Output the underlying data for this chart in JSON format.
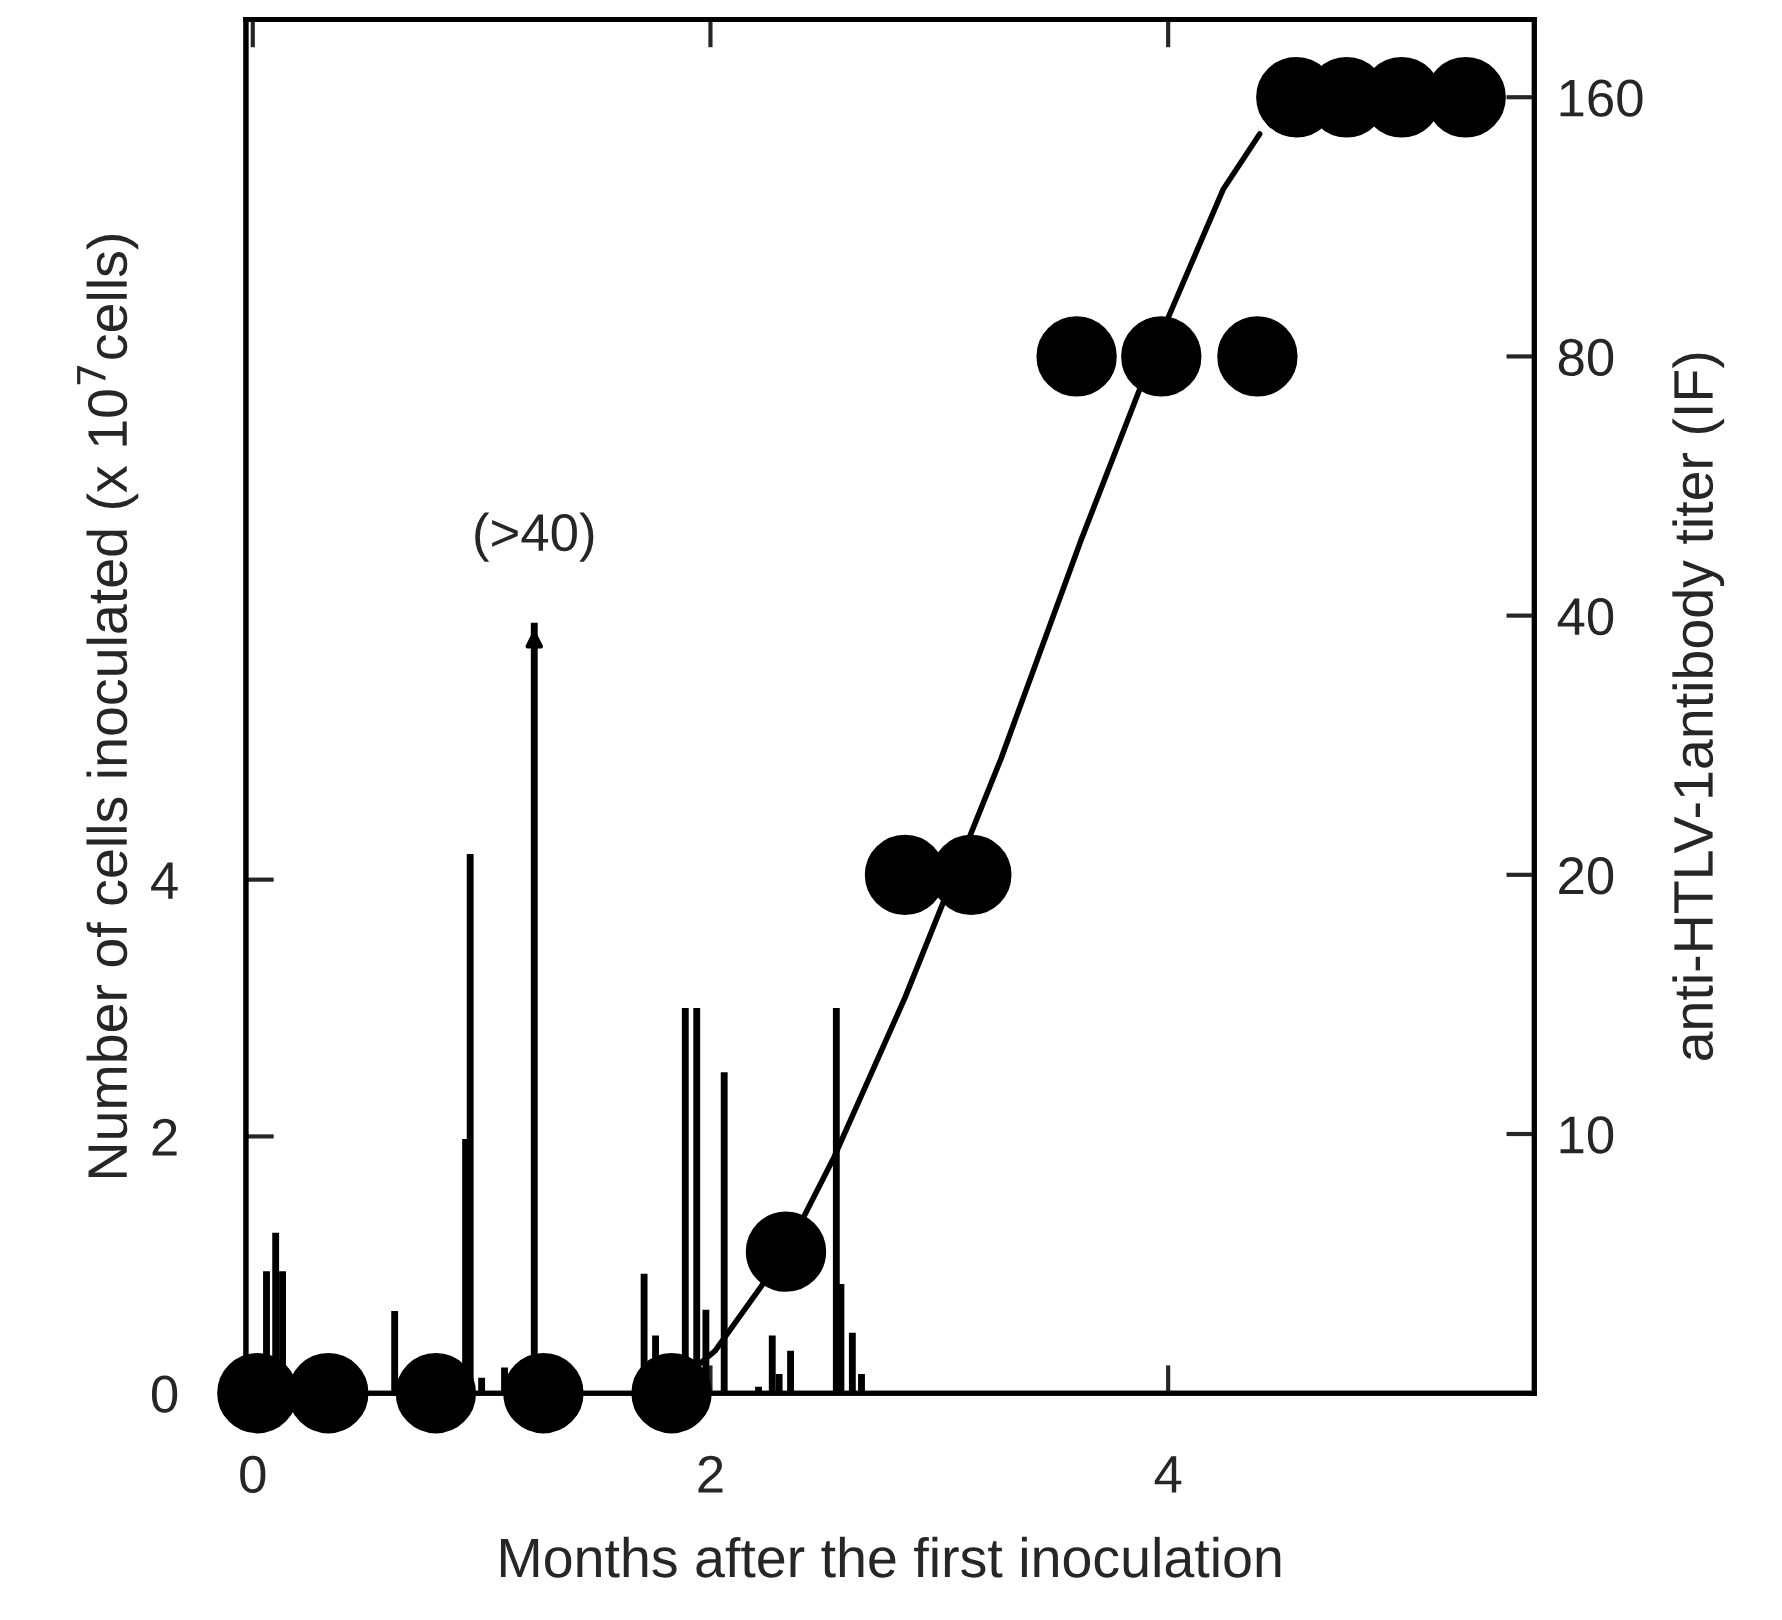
{
  "chart_data": {
    "type": "bar",
    "xlabel": "Months after the first inoculation",
    "ylabel": "Number of cells inoculated (x 10$^{7}$cells)",
    "y2label": "anti-HTLV-1antibody titer (IF)",
    "xlim": [
      -0.03,
      5.6
    ],
    "xticks": [
      0,
      2,
      4
    ],
    "ylim": [
      0,
      10.7
    ],
    "yticks": [
      0,
      2,
      4
    ],
    "y2lim": [
      5,
      197
    ],
    "y2ticks": [
      10,
      20,
      40,
      80,
      160
    ],
    "log": "y2",
    "grid": false,
    "legend": false,
    "series": [
      {
        "color": "#000000",
        "x": [
          0.06,
          0.1,
          0.13,
          0.62,
          0.93,
          0.95,
          1.0,
          1.1,
          1.23,
          1.71,
          1.76,
          1.89,
          1.94,
          1.98,
          2.06,
          2.21,
          2.27,
          2.3,
          2.35,
          2.55,
          2.57,
          2.62,
          2.66
        ],
        "values": [
          0.95,
          1.25,
          0.95,
          0.64,
          1.98,
          4.2,
          0.12,
          0.2,
          6.0,
          0.93,
          0.45,
          3.0,
          3.0,
          0.65,
          2.5,
          0.05,
          0.45,
          0.15,
          0.33,
          3.0,
          0.85,
          0.47,
          0.15
        ]
      },
      {
        "type": "scatter",
        "axis": "y2",
        "color": "#000000",
        "marker": "circle",
        "x": [
          0.02,
          0.33,
          0.8,
          1.27,
          1.83,
          2.33,
          2.85,
          3.14,
          3.6,
          3.97,
          4.39,
          4.56,
          4.78,
          5.02,
          5.3
        ],
        "values": [
          5,
          5,
          5,
          5,
          5,
          7.3,
          20,
          20,
          80,
          80,
          80,
          160,
          160,
          160,
          160
        ]
      },
      {
        "type": "line",
        "axis": "y2",
        "color": "#000000",
        "marker": "none",
        "line_style": "solid",
        "x": [
          1.8,
          2.02,
          2.33,
          2.54,
          2.85,
          3.27,
          3.62,
          3.97,
          4.24,
          4.4
        ],
        "values": [
          5,
          5.6,
          7.3,
          9.4,
          14.4,
          27.3,
          49,
          85,
          125,
          145
        ]
      }
    ],
    "annotations": [
      {
        "text": "(>40)",
        "x": 1.23,
        "y": 6.0
      }
    ]
  }
}
